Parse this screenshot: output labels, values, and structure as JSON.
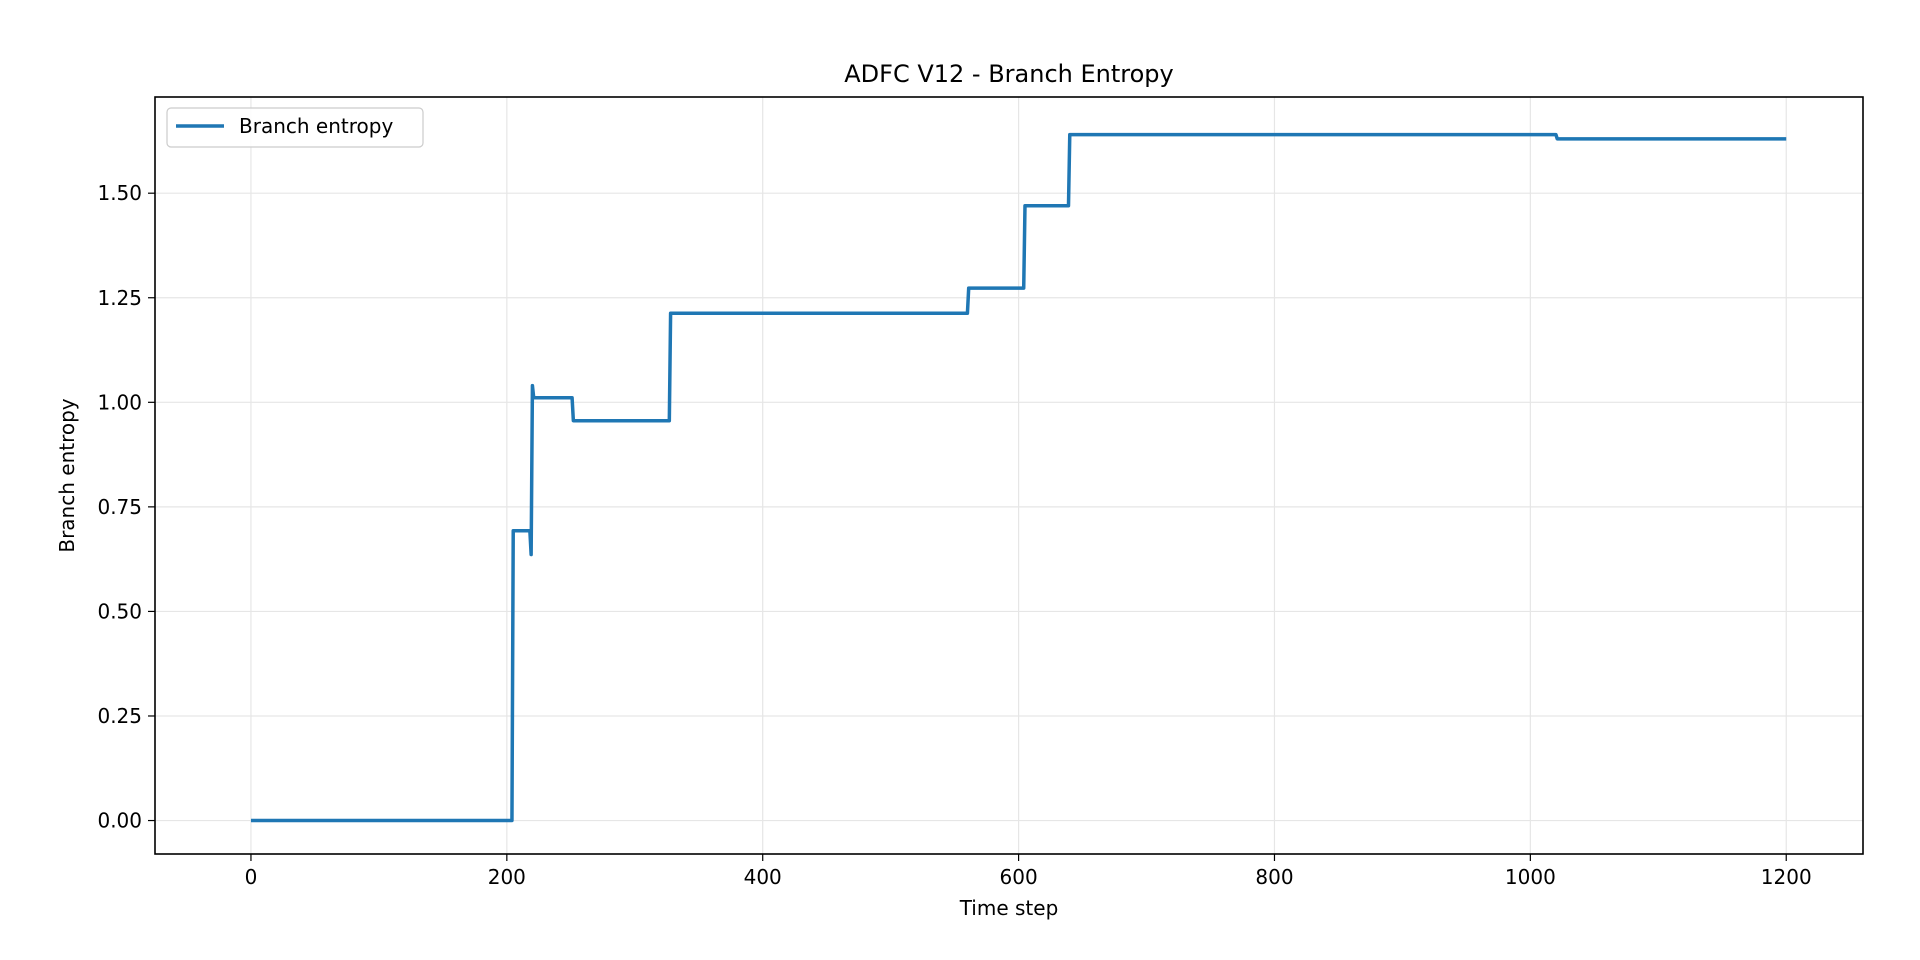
{
  "chart_data": {
    "type": "line",
    "title": "ADFC V12 - Branch Entropy",
    "xlabel": "Time step",
    "ylabel": "Branch entropy",
    "xlim": [
      -75,
      1260
    ],
    "ylim": [
      -0.08,
      1.73
    ],
    "xticks": [
      0,
      200,
      400,
      600,
      800,
      1000,
      1200
    ],
    "xtick_labels": [
      "0",
      "200",
      "400",
      "600",
      "800",
      "1000",
      "1200"
    ],
    "yticks": [
      0.0,
      0.25,
      0.5,
      0.75,
      1.0,
      1.25,
      1.5
    ],
    "ytick_labels": [
      "0.00",
      "0.25",
      "0.50",
      "0.75",
      "1.00",
      "1.25",
      "1.50"
    ],
    "grid": true,
    "legend_position": "top-left",
    "series": [
      {
        "name": "Branch entropy",
        "color": "#1f77b4",
        "x": [
          0,
          204,
          205,
          218,
          219,
          220,
          221,
          222,
          251,
          252,
          327,
          328,
          560,
          561,
          604,
          605,
          639,
          640,
          1020,
          1021,
          1200
        ],
        "y": [
          0.0,
          0.0,
          0.693,
          0.693,
          0.636,
          1.04,
          1.011,
          1.011,
          1.011,
          0.956,
          0.956,
          1.213,
          1.213,
          1.273,
          1.273,
          1.47,
          1.47,
          1.64,
          1.64,
          1.63,
          1.63
        ]
      }
    ]
  }
}
